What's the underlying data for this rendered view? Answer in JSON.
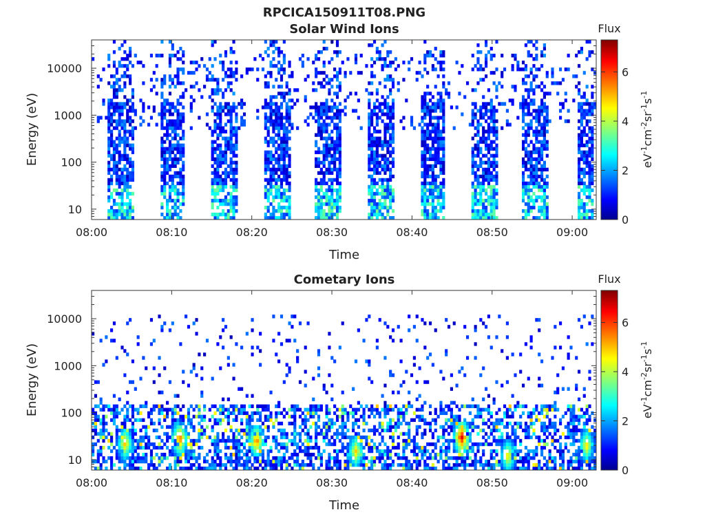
{
  "figure_title": "RPCICA150911T08.PNG",
  "chart_data": [
    {
      "type": "heatmap",
      "title": "Solar Wind Ions",
      "xlabel": "Time",
      "ylabel": "Energy (eV)",
      "x_tick_labels": [
        "08:00",
        "08:10",
        "08:20",
        "08:30",
        "08:40",
        "08:50",
        "09:00"
      ],
      "x_range_minutes": [
        0,
        63
      ],
      "y_scale": "log",
      "y_range_eV": [
        6,
        40000
      ],
      "y_tick_labels": [
        "10",
        "100",
        "1000",
        "10000"
      ],
      "colorbar": {
        "title": "Flux",
        "label": "eV-1cm-2sr-1s-1",
        "range": [
          0,
          7.3
        ],
        "tick_labels": [
          "0",
          "2",
          "4",
          "6"
        ],
        "colormap": "jet"
      },
      "bursts": [
        {
          "start_min": 2.0,
          "end_min": 5.2
        },
        {
          "start_min": 8.6,
          "end_min": 11.6
        },
        {
          "start_min": 15.0,
          "end_min": 18.2
        },
        {
          "start_min": 21.6,
          "end_min": 24.8
        },
        {
          "start_min": 28.0,
          "end_min": 31.2
        },
        {
          "start_min": 34.6,
          "end_min": 37.8
        },
        {
          "start_min": 41.0,
          "end_min": 44.2
        },
        {
          "start_min": 47.4,
          "end_min": 50.6
        },
        {
          "start_min": 53.8,
          "end_min": 57.0
        },
        {
          "start_min": 60.6,
          "end_min": 62.8
        }
      ],
      "grid": false
    },
    {
      "type": "heatmap",
      "title": "Cometary Ions",
      "xlabel": "Time",
      "ylabel": "Energy (eV)",
      "x_tick_labels": [
        "08:00",
        "08:10",
        "08:20",
        "08:30",
        "08:40",
        "08:50",
        "09:00"
      ],
      "x_range_minutes": [
        0,
        63
      ],
      "y_scale": "log",
      "y_range_eV": [
        6,
        40000
      ],
      "y_tick_labels": [
        "10",
        "100",
        "1000",
        "10000"
      ],
      "colorbar": {
        "title": "Flux",
        "label": "eV-1cm-2sr-1s-1",
        "range": [
          0,
          7.3
        ],
        "tick_labels": [
          "0",
          "2",
          "4",
          "6"
        ],
        "colormap": "jet"
      },
      "hot_spots": [
        {
          "time_min": 4.2,
          "energy_eV": 22,
          "flux": 5.2
        },
        {
          "time_min": 11.0,
          "energy_eV": 28,
          "flux": 6.0
        },
        {
          "time_min": 20.6,
          "energy_eV": 25,
          "flux": 5.8
        },
        {
          "time_min": 33.0,
          "energy_eV": 15,
          "flux": 5.0
        },
        {
          "time_min": 46.2,
          "energy_eV": 30,
          "flux": 6.8
        },
        {
          "time_min": 52.0,
          "energy_eV": 12,
          "flux": 5.0
        },
        {
          "time_min": 61.8,
          "energy_eV": 20,
          "flux": 5.0
        }
      ],
      "grid": false
    }
  ]
}
